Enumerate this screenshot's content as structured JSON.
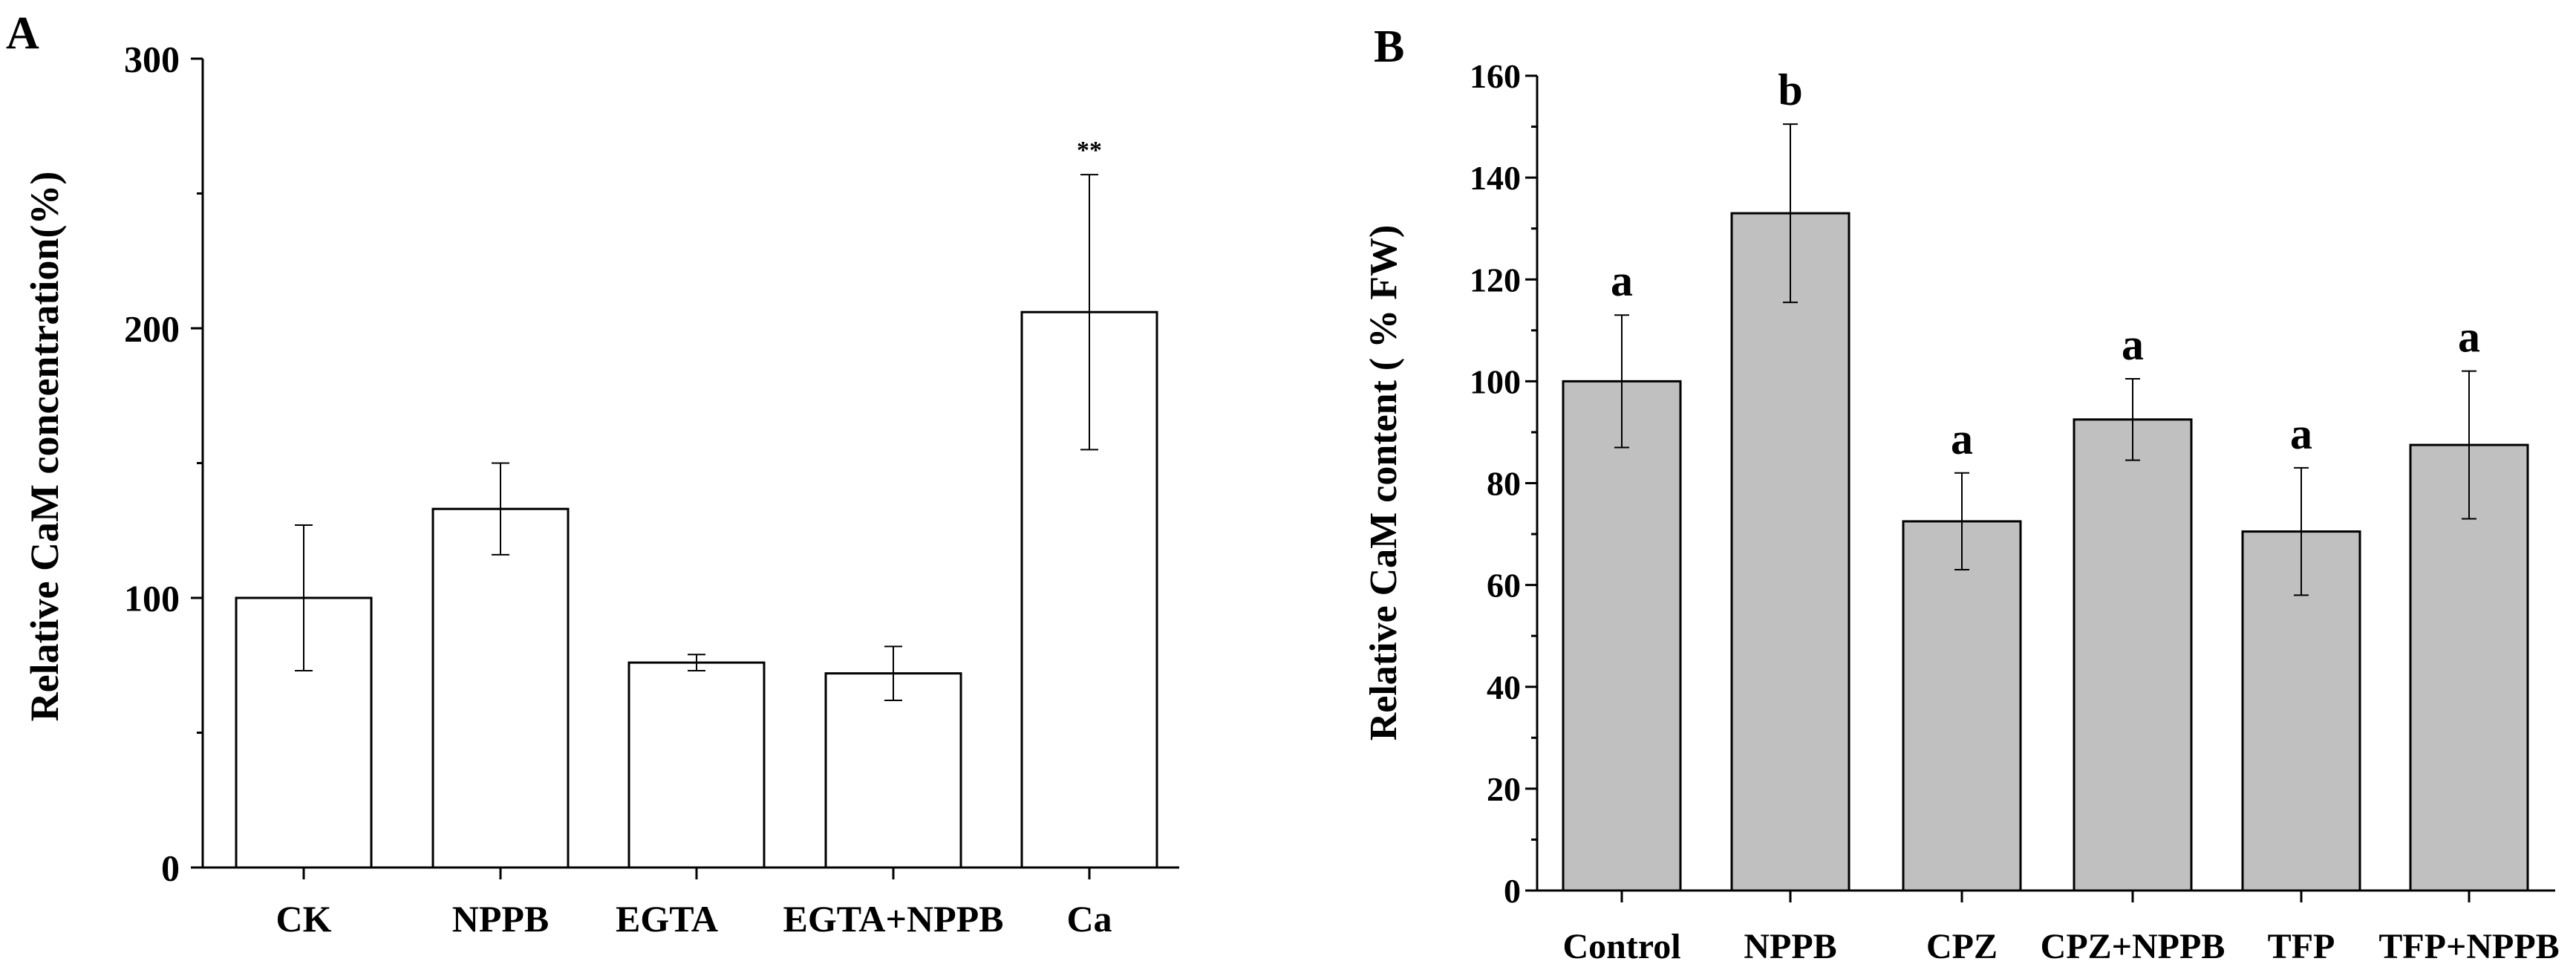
{
  "chart_data": [
    {
      "panel_label": "A",
      "type": "bar",
      "categories": [
        "CK",
        "NPPB",
        "EGTA",
        "EGTA+NPPB",
        "Ca"
      ],
      "values": [
        100,
        133,
        76,
        72,
        206
      ],
      "errors": [
        27,
        17,
        3,
        10,
        51
      ],
      "annotations": [
        "",
        "",
        "",
        "",
        "**"
      ],
      "ylabel": "Relative CaM concentration(%)",
      "xlabel": "",
      "ylim": [
        0,
        300
      ],
      "yticks": [
        0,
        100,
        200,
        300
      ],
      "bar_color": "#ffffff",
      "grid": false
    },
    {
      "panel_label": "B",
      "type": "bar",
      "categories": [
        "Control",
        "NPPB",
        "CPZ",
        "CPZ+NPPB",
        "TFP",
        "TFP+NPPB"
      ],
      "values": [
        100,
        133,
        72.5,
        92.5,
        70.5,
        87.5
      ],
      "errors": [
        13,
        17.5,
        9.5,
        8,
        12.5,
        14.5
      ],
      "annotations": [
        "a",
        "b",
        "a",
        "a",
        "a",
        "a"
      ],
      "ylabel": "Relative CaM content ( % FW)",
      "xlabel": "",
      "ylim": [
        0,
        160
      ],
      "yticks": [
        0,
        20,
        40,
        60,
        80,
        100,
        120,
        140,
        160
      ],
      "bar_color": "#c0c0c0",
      "grid": false
    }
  ]
}
